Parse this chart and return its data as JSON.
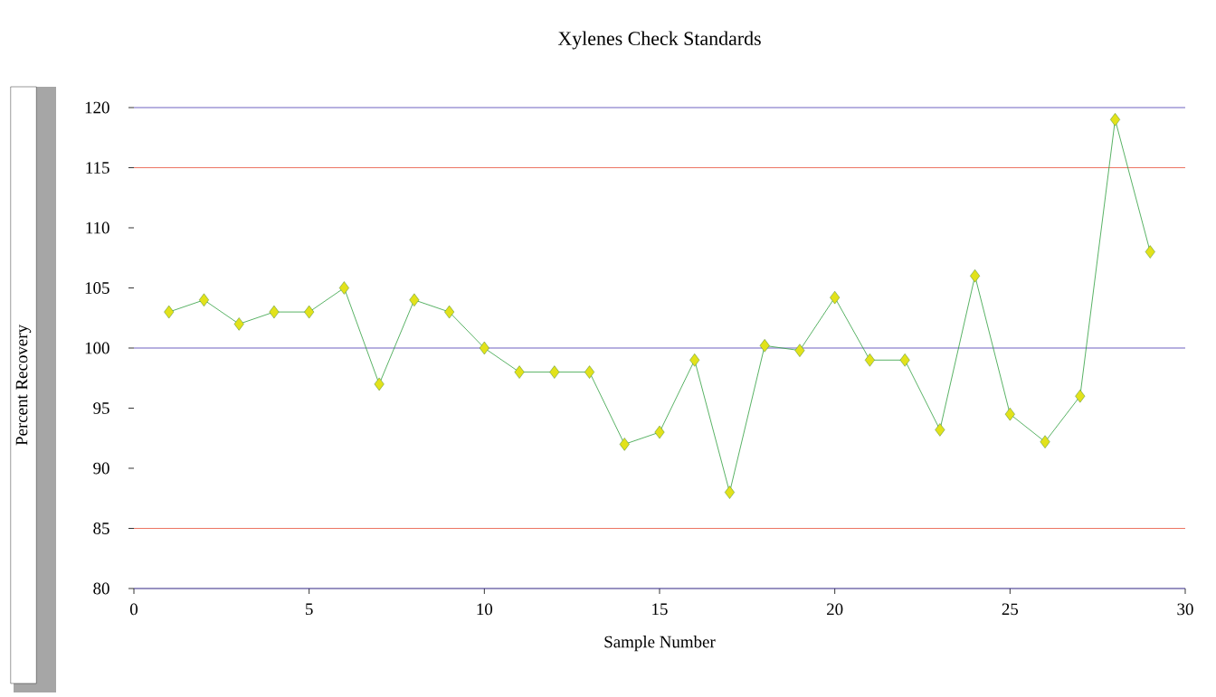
{
  "chart_data": {
    "type": "line",
    "title": "Xylenes Check Standards",
    "xlabel": "Sample Number",
    "ylabel": "Percent Recovery",
    "x": [
      1,
      2,
      3,
      4,
      5,
      6,
      7,
      8,
      9,
      10,
      11,
      12,
      13,
      14,
      15,
      16,
      17,
      18,
      19,
      20,
      21,
      22,
      23,
      24,
      25,
      26,
      27,
      28,
      29
    ],
    "series": [
      {
        "color": "#2e9e3e",
        "values": [
          103,
          104,
          102,
          103,
          103,
          105,
          97,
          104,
          103,
          100,
          98,
          98,
          98,
          92,
          93,
          99,
          88,
          100.2,
          99.8,
          104.2,
          99,
          99,
          93.2,
          106,
          94.5,
          92.2,
          96,
          119,
          108
        ]
      }
    ],
    "marker": "diamond",
    "grid": false,
    "xlim": [
      0,
      30
    ],
    "xticks": [
      0,
      5,
      10,
      15,
      20,
      25,
      30
    ],
    "ylim": [
      80,
      120
    ],
    "yticks": [
      80,
      85,
      90,
      95,
      100,
      105,
      110,
      115,
      120
    ],
    "ref_lines": [
      {
        "axis": "y",
        "value": 80,
        "color": "#4a3ab0"
      },
      {
        "axis": "y",
        "value": 85,
        "color": "#e8503a"
      },
      {
        "axis": "y",
        "value": 100,
        "color": "#4a3ab0"
      },
      {
        "axis": "y",
        "value": 115,
        "color": "#e8503a"
      },
      {
        "axis": "y",
        "value": 120,
        "color": "#4a3ab0"
      }
    ]
  }
}
